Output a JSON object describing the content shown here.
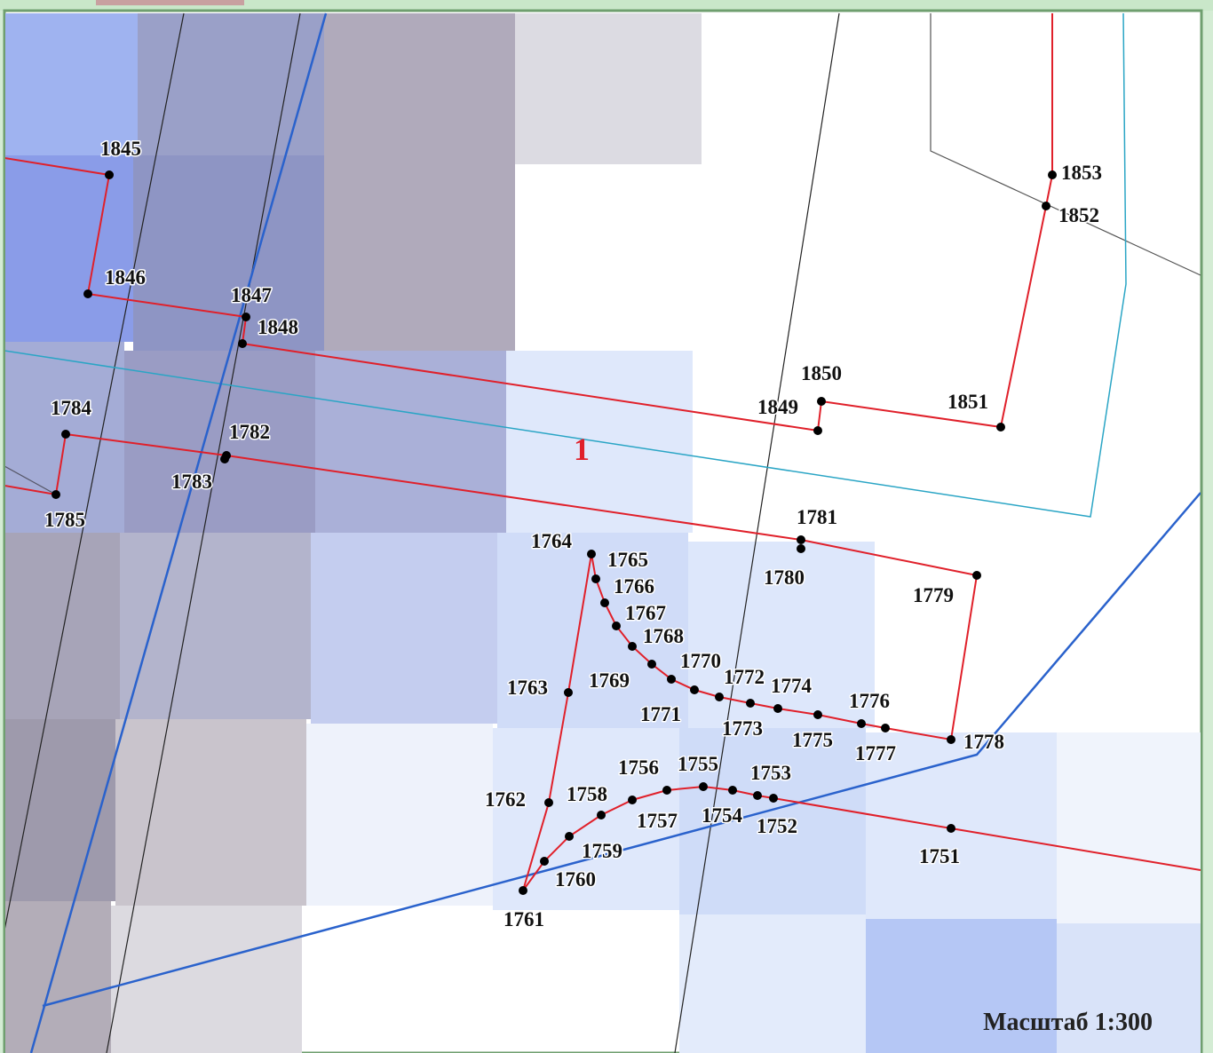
{
  "map": {
    "points": [
      "1845",
      "1846",
      "1847",
      "1848",
      "1784",
      "1785",
      "1782",
      "1783",
      "1850",
      "1849",
      "1851",
      "1853",
      "1852",
      "1781",
      "1780",
      "1779",
      "1778",
      "1764",
      "1765",
      "1766",
      "1767",
      "1768",
      "1769",
      "1770",
      "1771",
      "1772",
      "1773",
      "1774",
      "1775",
      "1776",
      "1777",
      "1763",
      "1762",
      "1761",
      "1760",
      "1759",
      "1758",
      "1757",
      "1756",
      "1755",
      "1754",
      "1753",
      "1752",
      "1751"
    ],
    "parcel_label": "1",
    "scale": "Масштаб 1:300"
  }
}
